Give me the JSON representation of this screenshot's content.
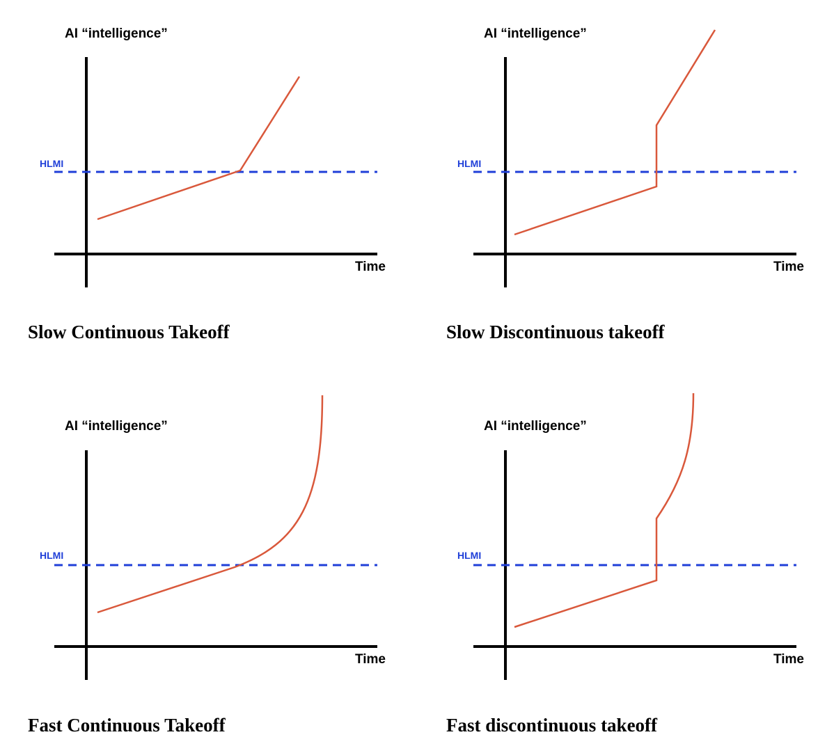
{
  "panels": [
    {
      "caption": "Slow Continuous Takeoff",
      "y_axis_label": "AI “intelligence”",
      "x_axis_label": "Time",
      "threshold_label": "HLMI"
    },
    {
      "caption": "Slow Discontinuous takeoff",
      "y_axis_label": "AI “intelligence”",
      "x_axis_label": "Time",
      "threshold_label": "HLMI"
    },
    {
      "caption": "Fast Continuous Takeoff",
      "y_axis_label": "AI “intelligence”",
      "x_axis_label": "Time",
      "threshold_label": "HLMI"
    },
    {
      "caption": "Fast discontinuous takeoff",
      "y_axis_label": "AI “intelligence”",
      "x_axis_label": "Time",
      "threshold_label": "HLMI"
    }
  ],
  "colors": {
    "curve": "#d9583b",
    "threshold": "#1f3fd8",
    "axis": "#000000"
  }
}
